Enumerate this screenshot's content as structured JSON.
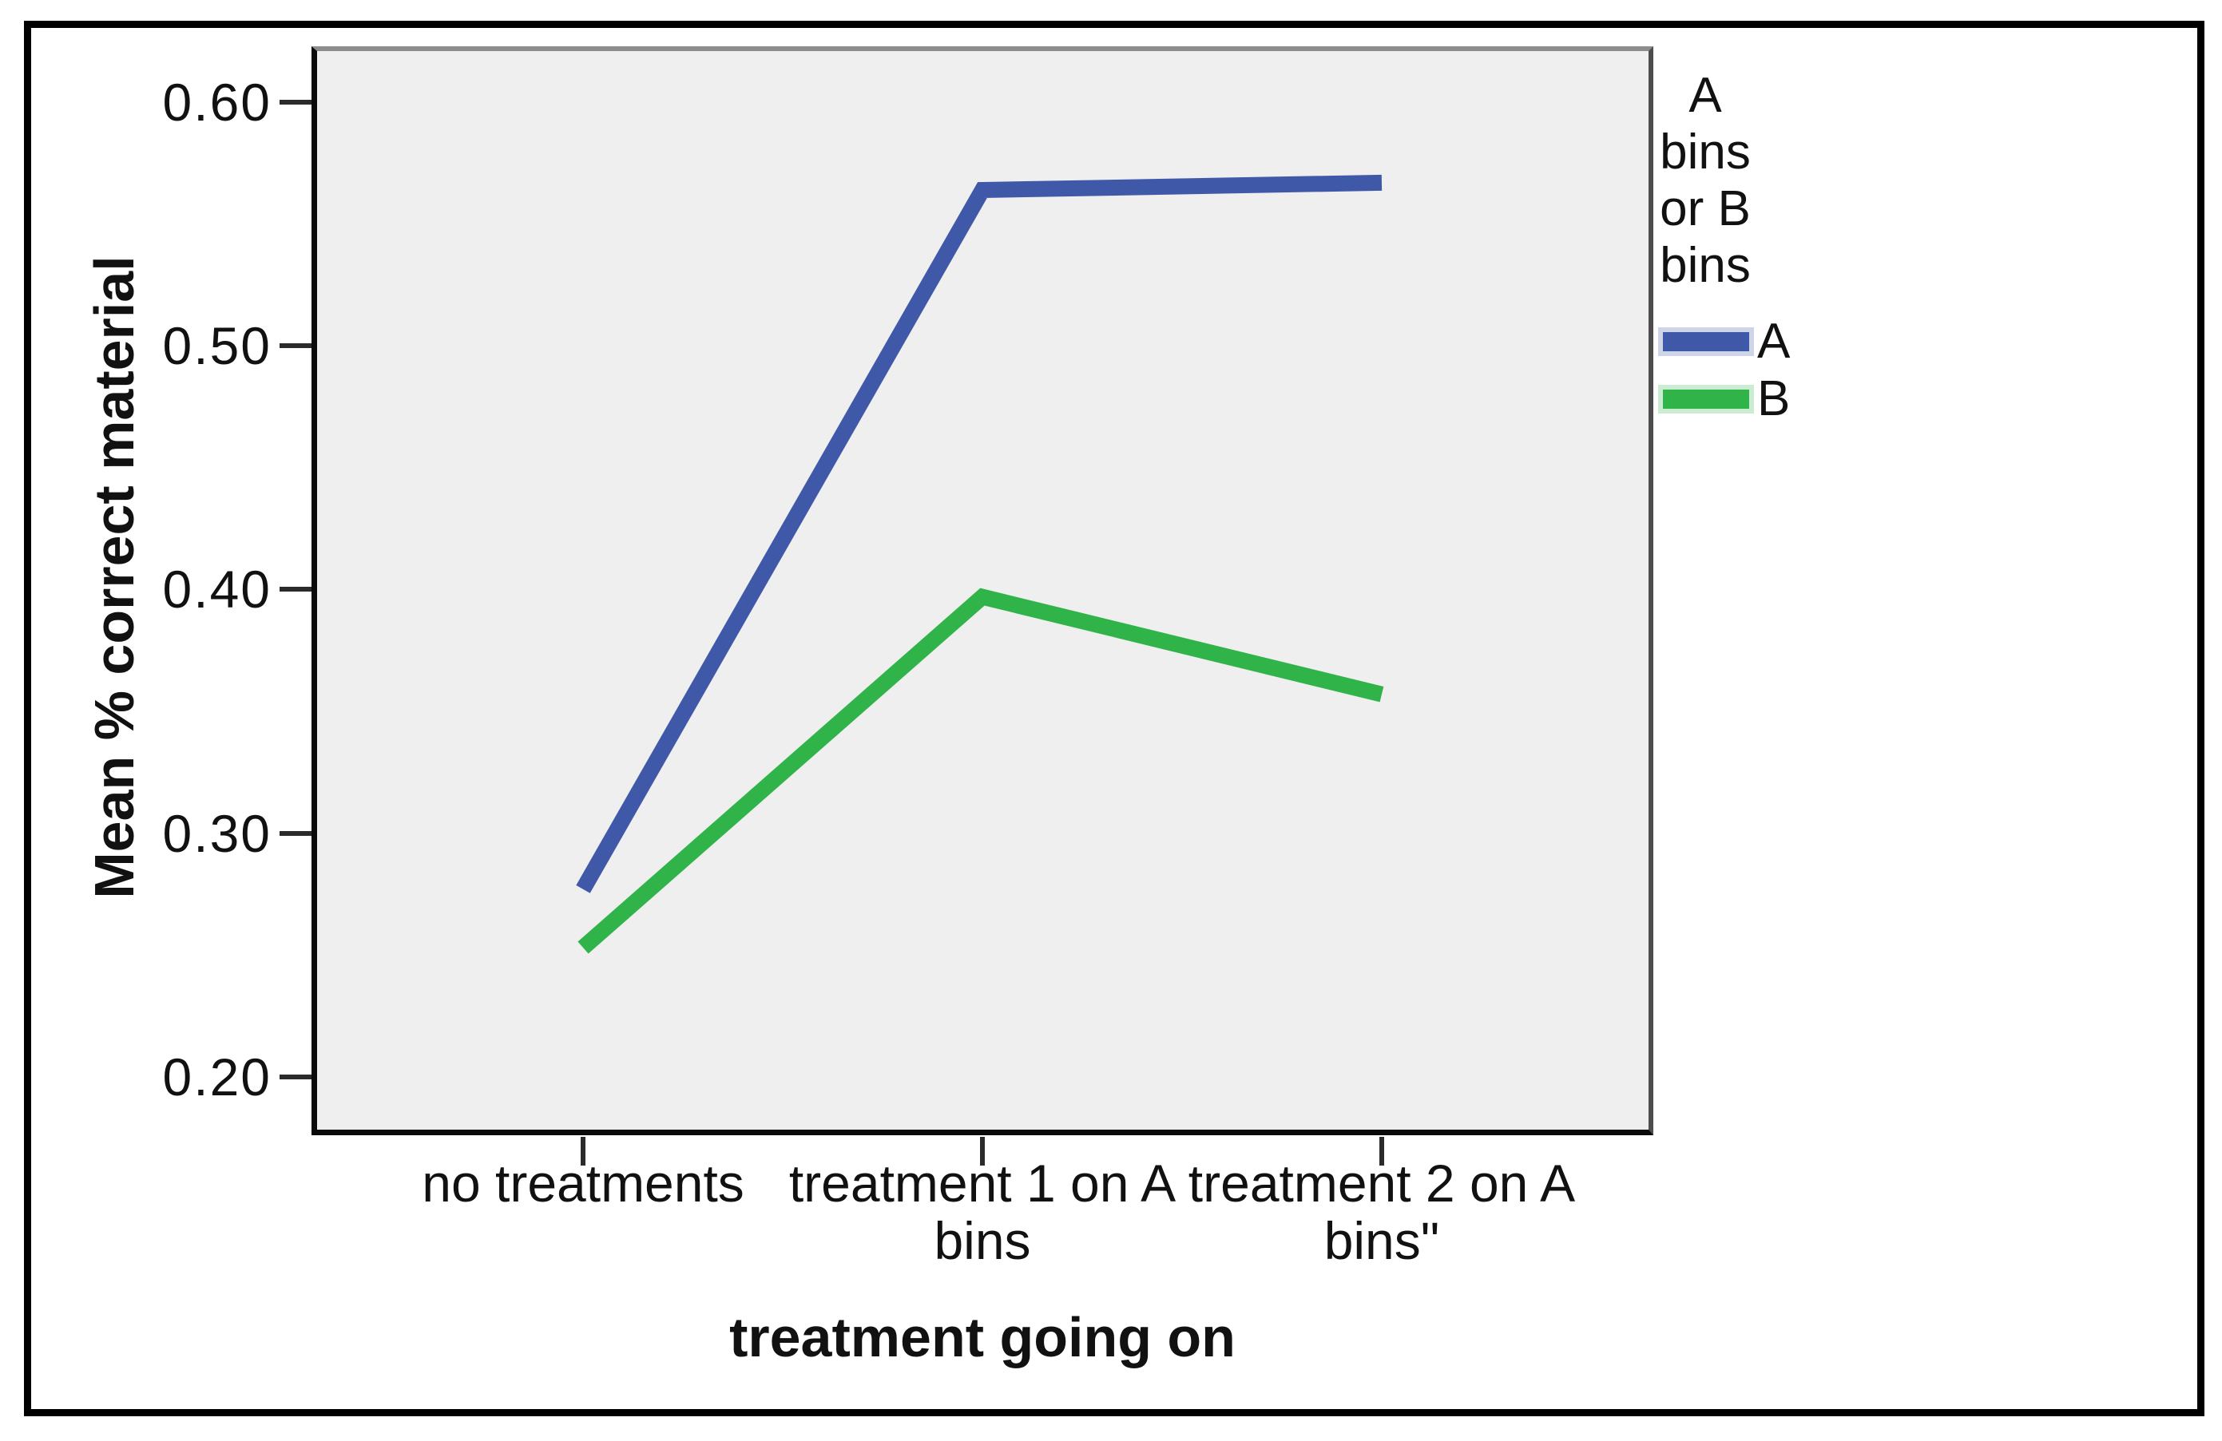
{
  "figure": {
    "background": "#ffffff",
    "border_color": "#000000"
  },
  "chart_data": {
    "type": "line",
    "title": "",
    "categories": [
      "no treatments",
      "treatment 1 on A\nbins",
      "treatment 2 on A\nbins\""
    ],
    "series": [
      {
        "name": "A",
        "color": "#4058A8",
        "values": [
          0.277,
          0.564,
          0.567
        ]
      },
      {
        "name": "B",
        "color": "#30B44A",
        "values": [
          0.253,
          0.397,
          0.357
        ]
      }
    ],
    "xlabel": "treatment going on",
    "ylabel": "Mean % correct material",
    "yticks": [
      0.2,
      0.3,
      0.4,
      0.5,
      0.6
    ],
    "ytick_labels": [
      "0.20",
      "0.30",
      "0.40",
      "0.50",
      "0.60"
    ],
    "ylim": [
      0.176,
      0.623
    ],
    "grid": false,
    "plot_background": "#EFEFEF",
    "axis_color": "#2b2b2b",
    "legend": {
      "title": "A\nbins\nor B\nbins",
      "position": "right",
      "entries": [
        "A",
        "B"
      ]
    }
  }
}
